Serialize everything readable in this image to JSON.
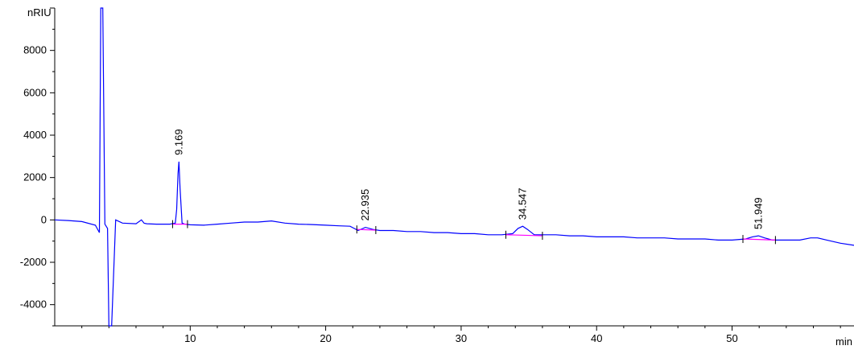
{
  "chart_data": {
    "type": "line",
    "title": "",
    "ylabel": "nRIU",
    "xlabel": "min",
    "xlim": [
      0,
      59
    ],
    "ylim": [
      -5000,
      10000
    ],
    "y_ticks": [
      8000,
      6000,
      4000,
      2000,
      0,
      -2000,
      -4000
    ],
    "x_ticks": [
      10,
      20,
      30,
      40,
      50
    ],
    "line_color": "#0000ff",
    "baseline_color": "#ff00ff",
    "series": [
      {
        "x": [
          0,
          1,
          2,
          3,
          3.3,
          3.4,
          3.55,
          3.7,
          3.9,
          4.0,
          4.2,
          4.5,
          5,
          6,
          6.4,
          6.6,
          6.8,
          7.5,
          8.5,
          8.9,
          9.0,
          9.1,
          9.169,
          9.25,
          9.4,
          9.6,
          10,
          11,
          12,
          13,
          14,
          15,
          16,
          17,
          18,
          19,
          20,
          21,
          21.8,
          22.4,
          22.935,
          23.5,
          24,
          25,
          26,
          27,
          28,
          29,
          30,
          31,
          32,
          33,
          33.8,
          34.2,
          34.547,
          34.9,
          35.4,
          36,
          37,
          38,
          39,
          40,
          41,
          42,
          43,
          44,
          45,
          46,
          47,
          48,
          49,
          50,
          51,
          51.5,
          51.949,
          52.4,
          53,
          54,
          55,
          55.8,
          56.3,
          57,
          58,
          59
        ],
        "y": [
          0,
          -30,
          -80,
          -250,
          -600,
          10000,
          10000,
          -200,
          -400,
          -5000,
          -5000,
          0,
          -150,
          -180,
          0,
          -160,
          -180,
          -200,
          -200,
          -150,
          500,
          2200,
          2750,
          1500,
          -150,
          -200,
          -230,
          -250,
          -200,
          -150,
          -100,
          -100,
          -50,
          -150,
          -200,
          -220,
          -250,
          -280,
          -300,
          -500,
          -350,
          -450,
          -500,
          -500,
          -550,
          -550,
          -600,
          -600,
          -650,
          -650,
          -700,
          -700,
          -650,
          -400,
          -300,
          -450,
          -700,
          -700,
          -700,
          -750,
          -750,
          -800,
          -800,
          -800,
          -850,
          -850,
          -850,
          -900,
          -900,
          -900,
          -950,
          -950,
          -900,
          -800,
          -750,
          -850,
          -950,
          -950,
          -950,
          -850,
          -850,
          -950,
          -1100,
          -1200
        ]
      }
    ],
    "peaks": [
      {
        "label": "9.169",
        "x": 9.169,
        "y": 2750,
        "baseline": [
          8.7,
          -200,
          9.8,
          -200
        ]
      },
      {
        "label": "22.935",
        "x": 22.935,
        "y": -350,
        "baseline": [
          22.3,
          -450,
          23.7,
          -480
        ]
      },
      {
        "label": "34.547",
        "x": 34.547,
        "y": -300,
        "baseline": [
          33.3,
          -700,
          36.0,
          -750
        ]
      },
      {
        "label": "51.949",
        "x": 51.949,
        "y": -750,
        "baseline": [
          50.8,
          -900,
          53.2,
          -950
        ]
      }
    ]
  }
}
